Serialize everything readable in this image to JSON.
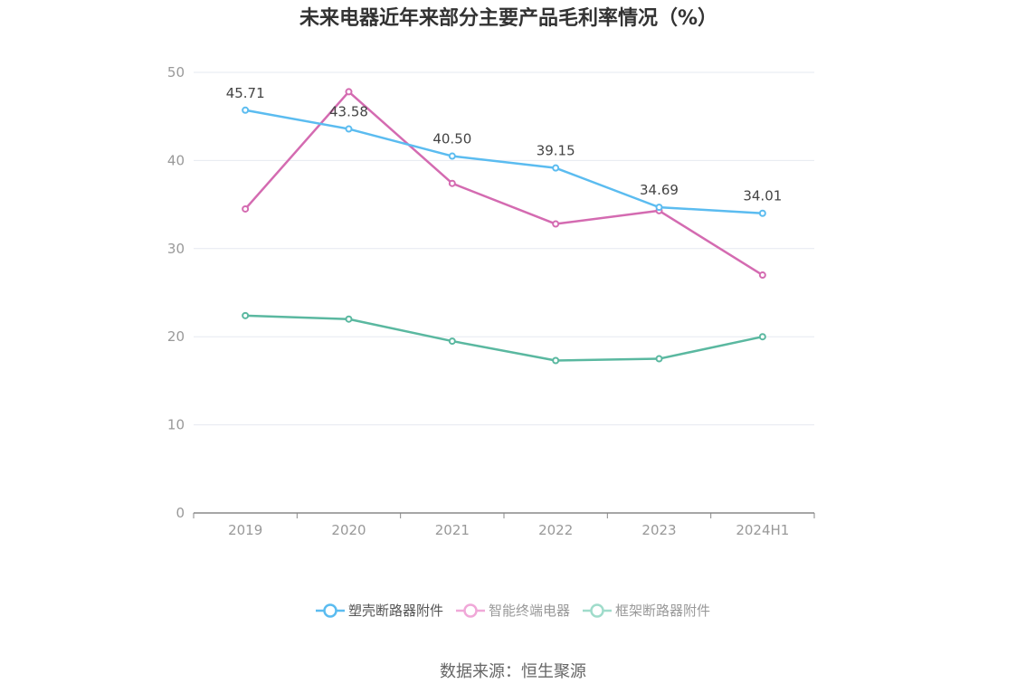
{
  "chart_data": {
    "type": "line",
    "title": "未来电器近年来部分主要产品毛利率情况（%）",
    "categories": [
      "2019",
      "2020",
      "2021",
      "2022",
      "2023",
      "2024H1"
    ],
    "ylim": [
      0,
      50
    ],
    "yticks": [
      "0",
      "10",
      "20",
      "30",
      "40",
      "50"
    ],
    "grid": true,
    "legend_position": "bottom",
    "series": [
      {
        "name": "塑壳断路器附件",
        "color": "#5bbcf0",
        "values": [
          45.71,
          43.58,
          40.5,
          39.15,
          34.69,
          34.01
        ],
        "labels": [
          "45.71",
          "43.58",
          "40.50",
          "39.15",
          "34.69",
          "34.01"
        ]
      },
      {
        "name": "智能终端电器",
        "color": "#d46bb1",
        "values": [
          34.5,
          47.8,
          37.4,
          32.8,
          34.3,
          27.0
        ]
      },
      {
        "name": "框架断路器附件",
        "color": "#5ab8a0",
        "values": [
          22.4,
          22.0,
          19.5,
          17.3,
          17.5,
          20.0
        ]
      }
    ],
    "legend_colors": [
      "#5bbcf0",
      "#f0a8d8",
      "#a0dccb"
    ]
  },
  "source": "数据来源：恒生聚源"
}
